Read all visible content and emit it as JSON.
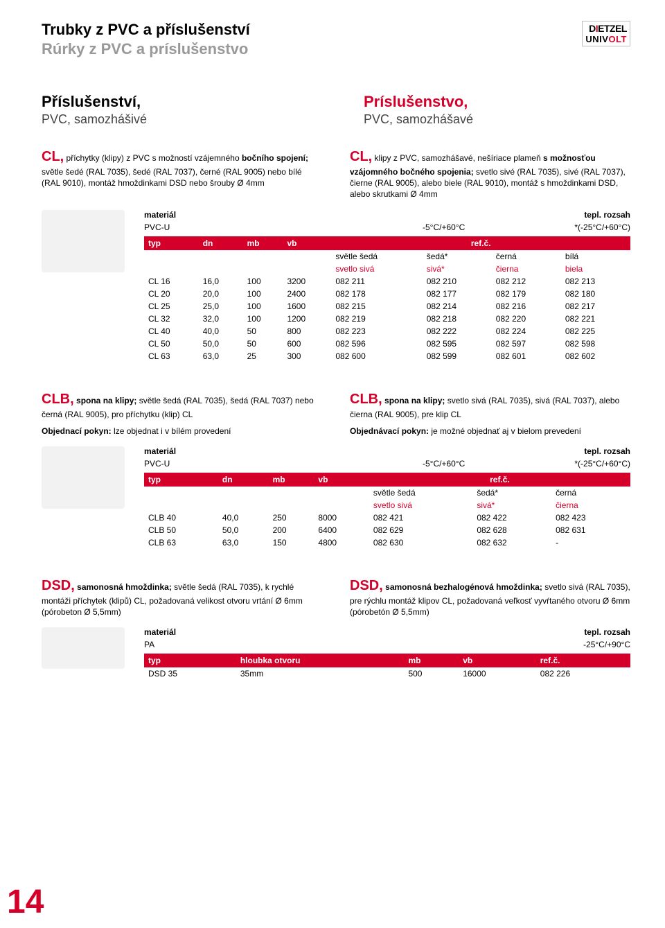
{
  "colors": {
    "brand_red": "#d4002a",
    "text_black": "#000000",
    "text_grey": "#999999",
    "bg_white": "#ffffff"
  },
  "page_number": "14",
  "header": {
    "title_cz": "Trubky z PVC a příslušenství",
    "title_sk": "Rúrky z PVC a príslušenstvo",
    "logo_line1_pre": "D",
    "logo_line1_mid": "I",
    "logo_line1_post": "ETZEL",
    "logo_line2_pre": "UNIV",
    "logo_line2_post": "OLT"
  },
  "section": {
    "cz_main": "Příslušenství,",
    "cz_sub": "PVC, samozhášivé",
    "sk_main": "Príslušenstvo,",
    "sk_sub": "PVC, samozhášavé"
  },
  "cl": {
    "prefix": "CL,",
    "desc_cz": " příchytky (klipy) z PVC s možností vzájemného bočního spojení; světle šedé (RAL 7035), šedé (RAL 7037), černé (RAL 9005) nebo bílé (RAL 9010), montáž hmoždinkami DSD nebo šrouby Ø 4mm",
    "desc_sk": " klipy z PVC, samozhášavé, nešíriace plameň s možnosťou vzájomného bočného spojenia; svetlo sivé (RAL 7035), sivé (RAL 7037), čierne (RAL 9005), alebo biele (RAL 9010), montáž s hmoždinkami DSD, alebo skrutkami Ø 4mm",
    "desc_cz_bold": "bočního spojení;",
    "desc_sk_bold": "s možnosťou vzájomného bočného spojenia;",
    "material_label": "materiál",
    "material_value": "PVC-U",
    "temp_label": "tepl. rozsah",
    "temp_value": "-5°C/+60°C",
    "temp_value2": "*(-25°C/+60°C)",
    "head": {
      "typ": "typ",
      "dn": "dn",
      "mb": "mb",
      "vb": "vb",
      "ref": "ref.č."
    },
    "sub": {
      "c1_cz": "světle šedá",
      "c1_sk": "svetlo sivá",
      "c2_cz": "šedá*",
      "c2_sk": "sivá*",
      "c3_cz": "černá",
      "c3_sk": "čierna",
      "c4_cz": "bílá",
      "c4_sk": "biela"
    },
    "rows": [
      {
        "typ": "CL 16",
        "dn": "16,0",
        "mb": "100",
        "vb": "3200",
        "r1": "082 211",
        "r2": "082 210",
        "r3": "082 212",
        "r4": "082 213"
      },
      {
        "typ": "CL 20",
        "dn": "20,0",
        "mb": "100",
        "vb": "2400",
        "r1": "082 178",
        "r2": "082 177",
        "r3": "082 179",
        "r4": "082 180"
      },
      {
        "typ": "CL 25",
        "dn": "25,0",
        "mb": "100",
        "vb": "1600",
        "r1": "082 215",
        "r2": "082 214",
        "r3": "082 216",
        "r4": "082 217"
      },
      {
        "typ": "CL 32",
        "dn": "32,0",
        "mb": "100",
        "vb": "1200",
        "r1": "082 219",
        "r2": "082 218",
        "r3": "082 220",
        "r4": "082 221"
      },
      {
        "typ": "CL 40",
        "dn": "40,0",
        "mb": "50",
        "vb": "800",
        "r1": "082 223",
        "r2": "082 222",
        "r3": "082 224",
        "r4": "082 225"
      },
      {
        "typ": "CL 50",
        "dn": "50,0",
        "mb": "50",
        "vb": "600",
        "r1": "082 596",
        "r2": "082 595",
        "r3": "082 597",
        "r4": "082 598"
      },
      {
        "typ": "CL 63",
        "dn": "63,0",
        "mb": "25",
        "vb": "300",
        "r1": "082 600",
        "r2": "082 599",
        "r3": "082 601",
        "r4": "082 602"
      }
    ]
  },
  "clb": {
    "prefix": "CLB,",
    "desc_cz": " spona na klipy; světle šedá (RAL 7035), šedá (RAL 7037) nebo černá (RAL 9005), pro příchytku (klip) CL",
    "desc_sk": " spona na klipy; svetlo sivá (RAL 7035), sivá (RAL 7037), alebo čierna (RAL 9005), pre klip CL",
    "desc_cz_bold": "spona na klipy;",
    "desc_sk_bold": "spona na klipy;",
    "order_cz_b": "Objednací pokyn:",
    "order_cz": " lze objednat i v bílém provedení",
    "order_sk_b": "Objednávací pokyn:",
    "order_sk": " je možné objednať aj v bielom prevedení",
    "material_label": "materiál",
    "material_value": "PVC-U",
    "temp_label": "tepl. rozsah",
    "temp_value": "-5°C/+60°C",
    "temp_value2": "*(-25°C/+60°C)",
    "head": {
      "typ": "typ",
      "dn": "dn",
      "mb": "mb",
      "vb": "vb",
      "ref": "ref.č."
    },
    "sub": {
      "c1_cz": "světle šedá",
      "c1_sk": "svetlo sivá",
      "c2_cz": "šedá*",
      "c2_sk": "sivá*",
      "c3_cz": "černá",
      "c3_sk": "čierna"
    },
    "rows": [
      {
        "typ": "CLB 40",
        "dn": "40,0",
        "mb": "250",
        "vb": "8000",
        "r1": "082 421",
        "r2": "082 422",
        "r3": "082 423"
      },
      {
        "typ": "CLB 50",
        "dn": "50,0",
        "mb": "200",
        "vb": "6400",
        "r1": "082 629",
        "r2": "082 628",
        "r3": "082 631"
      },
      {
        "typ": "CLB 63",
        "dn": "63,0",
        "mb": "150",
        "vb": "4800",
        "r1": "082 630",
        "r2": "082 632",
        "r3": "-"
      }
    ]
  },
  "dsd": {
    "prefix": "DSD,",
    "desc_cz": " samonosná hmoždinka; světle šedá (RAL 7035), k rychlé montáži příchytek (klipů) CL, požadovaná velikost otvoru vrtání Ø 6mm (pórobeton Ø 5,5mm)",
    "desc_sk": " samonosná bezhalogénová hmoždinka; svetlo sivá (RAL 7035), pre rýchlu montáž klipov CL, požadovaná veľkosť vyvŕtaného otvoru Ø 6mm (pórobetón Ø 5,5mm)",
    "desc_cz_bold": "samonosná hmoždinka;",
    "desc_sk_bold": "samonosná bezhalogénová hmoždinka;",
    "material_label": "materiál",
    "material_value": "PA",
    "temp_label": "tepl. rozsah",
    "temp_value": "-25°C/+90°C",
    "head": {
      "typ": "typ",
      "depth": "hloubka otvoru",
      "mb": "mb",
      "vb": "vb",
      "ref": "ref.č."
    },
    "rows": [
      {
        "typ": "DSD 35",
        "depth": "35mm",
        "mb": "500",
        "vb": "16000",
        "ref": "082 226"
      }
    ]
  }
}
